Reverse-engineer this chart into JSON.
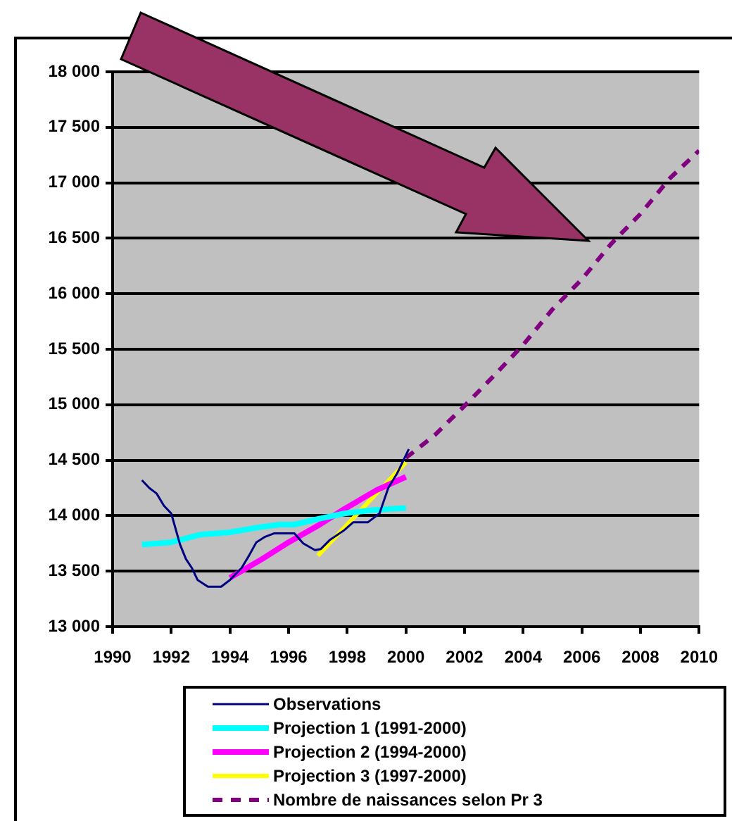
{
  "chart_data": {
    "type": "line",
    "xlim": [
      1990,
      2010
    ],
    "xticks": [
      1990,
      1992,
      1994,
      1996,
      1998,
      2000,
      2002,
      2004,
      2006,
      2008,
      2010
    ],
    "ylim": [
      13000,
      18000
    ],
    "yticks": [
      {
        "value": 13000,
        "label": "13 000"
      },
      {
        "value": 13500,
        "label": "13 500"
      },
      {
        "value": 14000,
        "label": "14 000"
      },
      {
        "value": 14500,
        "label": "14 500"
      },
      {
        "value": 15000,
        "label": "15 000"
      },
      {
        "value": 15500,
        "label": "15 500"
      },
      {
        "value": 16000,
        "label": "16 000"
      },
      {
        "value": 16500,
        "label": "16 500"
      },
      {
        "value": 17000,
        "label": "17 000"
      },
      {
        "value": 17500,
        "label": "17 500"
      },
      {
        "value": 18000,
        "label": "18 000"
      }
    ],
    "grid": "y",
    "legend": "bottom",
    "marker": "none",
    "series": [
      {
        "name": "Observations",
        "color": "#000080",
        "x": [
          1991,
          1991.25,
          1991.5,
          1991.75,
          1992,
          1992.3,
          1992.5,
          1992.7,
          1992.9,
          1993.25,
          1993.7,
          1994,
          1994.4,
          1994.65,
          1994.9,
          1995.2,
          1995.5,
          1996.2,
          1996.5,
          1996.9,
          1997.1,
          1997.4,
          1997.9,
          1998.2,
          1998.7,
          1999.1,
          1999.4,
          1999.7,
          2000.1
        ],
        "values": [
          14320,
          14250,
          14200,
          14090,
          14020,
          13740,
          13610,
          13530,
          13420,
          13360,
          13360,
          13420,
          13530,
          13640,
          13760,
          13810,
          13840,
          13840,
          13750,
          13690,
          13700,
          13780,
          13870,
          13940,
          13940,
          14020,
          14250,
          14380,
          14600
        ]
      },
      {
        "name": "Projection 1 (1991-2000)",
        "color": "#00ffff",
        "x": [
          1991,
          1992,
          1993,
          1994,
          1995.1,
          1995.7,
          1996.2,
          1997,
          1997.9,
          1998.85,
          2000
        ],
        "values": [
          13740,
          13760,
          13830,
          13850,
          13900,
          13920,
          13920,
          13970,
          14020,
          14050,
          14070
        ]
      },
      {
        "name": "Projection 2 (1994-2000)",
        "color": "#ff00ff",
        "x": [
          1994,
          1995.1,
          1996,
          1997,
          1997.9,
          1999,
          2000
        ],
        "values": [
          13440,
          13610,
          13760,
          13910,
          14060,
          14230,
          14350
        ]
      },
      {
        "name": "Projection 3 (1997-2000)",
        "color": "#ffff00",
        "x": [
          1997,
          2000
        ],
        "values": [
          13640,
          14480
        ]
      },
      {
        "name": "Nombre de naissances selon Pr 3",
        "color": "#800080",
        "line_style": "dashed",
        "x": [
          2000,
          2001,
          2002,
          2003,
          2004,
          2005,
          2006,
          2007,
          2008,
          2009,
          2010
        ],
        "values": [
          14520,
          14730,
          14990,
          15260,
          15540,
          15860,
          16130,
          16450,
          16720,
          17040,
          17290
        ]
      }
    ]
  }
}
